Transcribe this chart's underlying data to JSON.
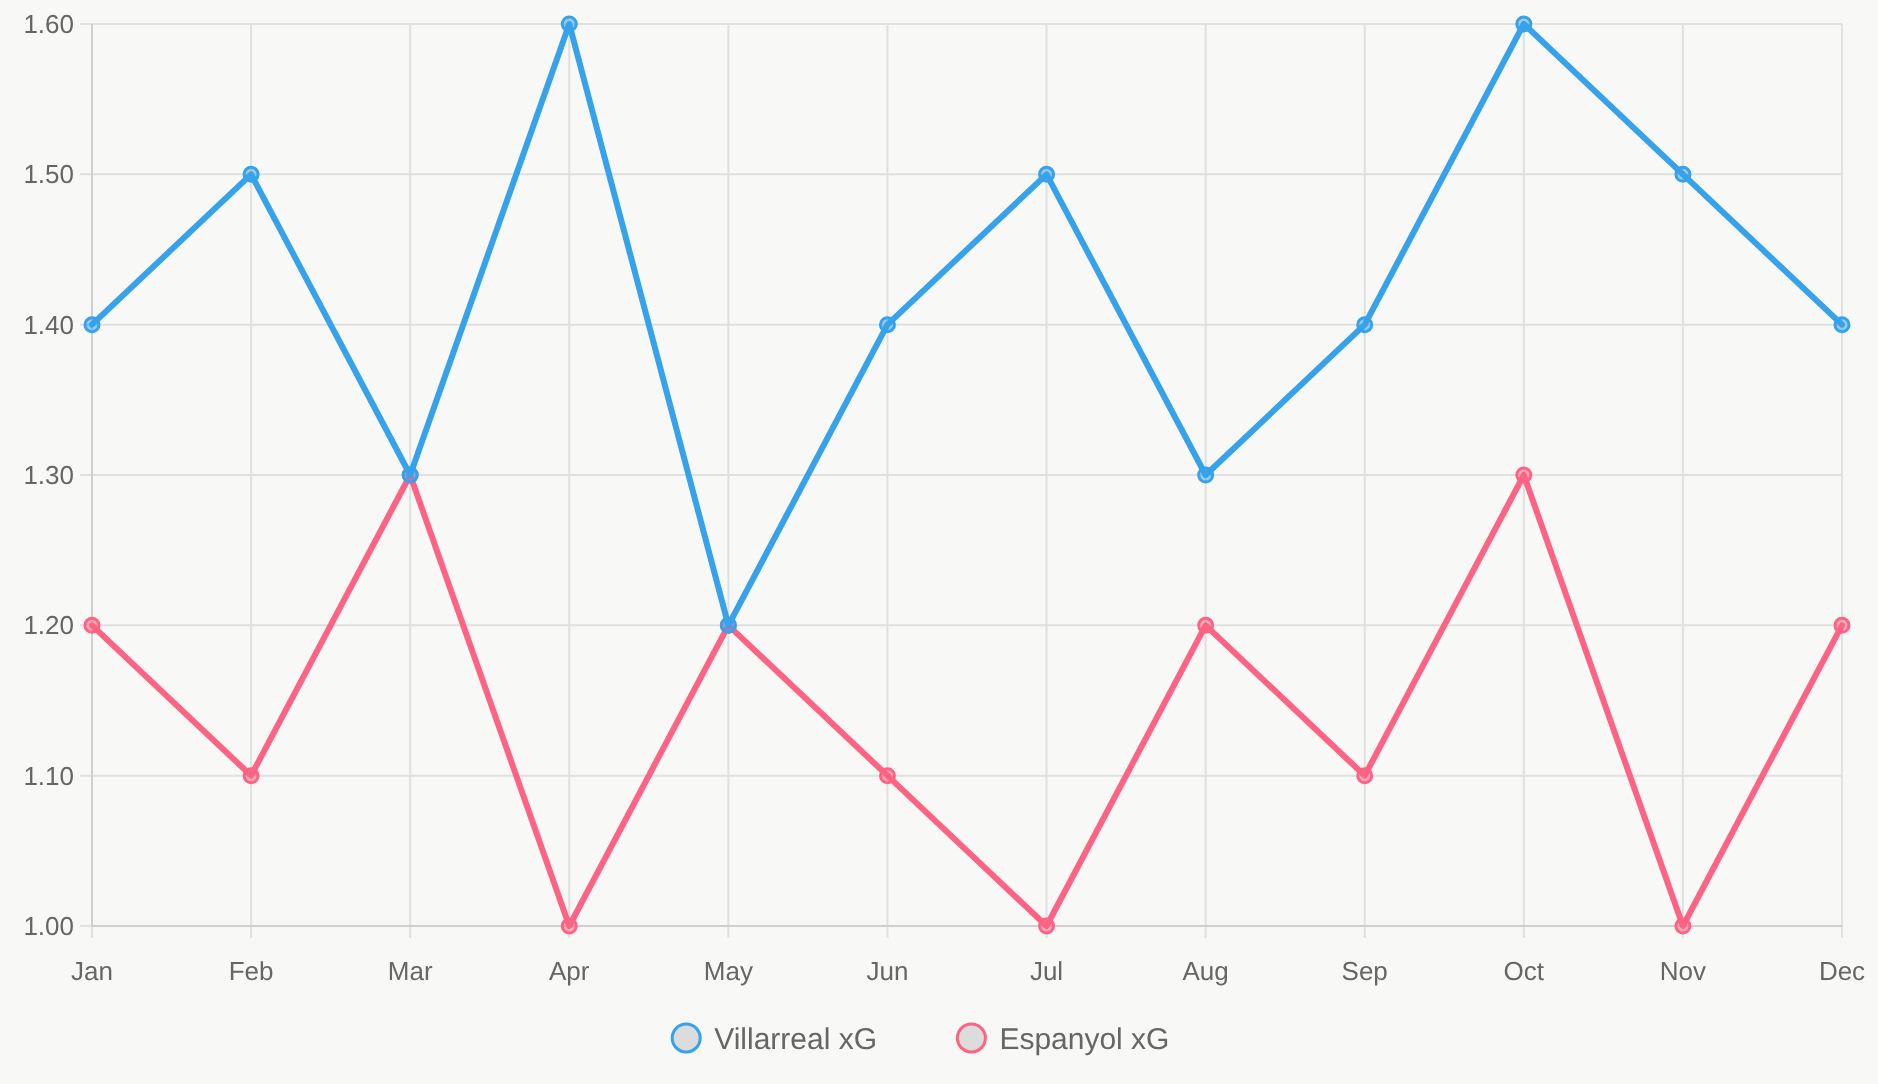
{
  "chart_data": {
    "type": "line",
    "categories": [
      "Jan",
      "Feb",
      "Mar",
      "Apr",
      "May",
      "Jun",
      "Jul",
      "Aug",
      "Sep",
      "Oct",
      "Nov",
      "Dec"
    ],
    "series": [
      {
        "name": "Villarreal xG",
        "color": "#36a2eb",
        "values": [
          1.4,
          1.5,
          1.3,
          1.6,
          1.2,
          1.4,
          1.5,
          1.3,
          1.4,
          1.6,
          1.5,
          1.4
        ]
      },
      {
        "name": "Espanyol xG",
        "color": "#ff6384",
        "values": [
          1.2,
          1.1,
          1.3,
          1.0,
          1.2,
          1.1,
          1.0,
          1.2,
          1.1,
          1.3,
          1.0,
          1.2
        ]
      }
    ],
    "ylim": [
      1.0,
      1.6
    ],
    "yticks": [
      {
        "value": 1.0,
        "label": "1.00"
      },
      {
        "value": 1.1,
        "label": "1.10"
      },
      {
        "value": 1.2,
        "label": "1.20"
      },
      {
        "value": 1.3,
        "label": "1.30"
      },
      {
        "value": 1.4,
        "label": "1.40"
      },
      {
        "value": 1.5,
        "label": "1.50"
      },
      {
        "value": 1.6,
        "label": "1.60"
      }
    ],
    "grid": true,
    "legend": "bottom",
    "marker": "circle",
    "line_style": "solid"
  }
}
